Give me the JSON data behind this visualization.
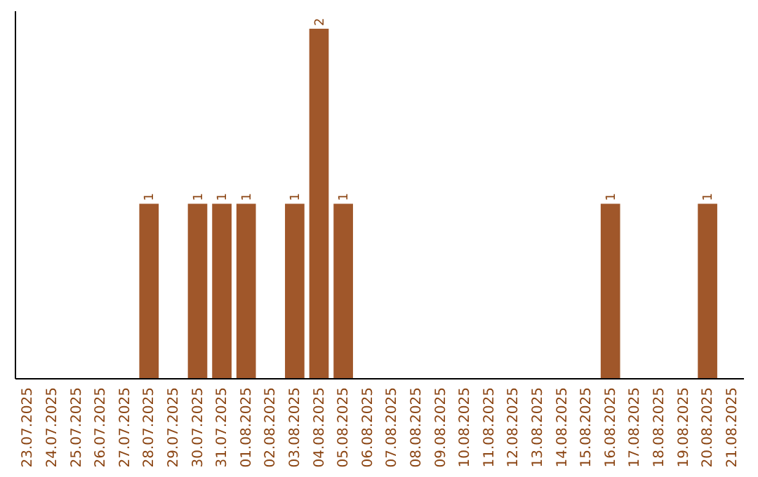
{
  "chart_data": {
    "type": "bar",
    "categories": [
      "23.07.2025",
      "24.07.2025",
      "25.07.2025",
      "26.07.2025",
      "27.07.2025",
      "28.07.2025",
      "29.07.2025",
      "30.07.2025",
      "31.07.2025",
      "01.08.2025",
      "02.08.2025",
      "03.08.2025",
      "04.08.2025",
      "05.08.2025",
      "06.08.2025",
      "07.08.2025",
      "08.08.2025",
      "09.08.2025",
      "10.08.2025",
      "11.08.2025",
      "12.08.2025",
      "13.08.2025",
      "14.08.2025",
      "15.08.2025",
      "16.08.2025",
      "17.08.2025",
      "18.08.2025",
      "19.08.2025",
      "20.08.2025",
      "21.08.2025"
    ],
    "values": [
      null,
      null,
      null,
      null,
      null,
      1,
      null,
      1,
      1,
      1,
      null,
      1,
      2,
      1,
      null,
      null,
      null,
      null,
      null,
      null,
      null,
      null,
      null,
      null,
      1,
      null,
      null,
      null,
      1,
      null
    ],
    "color": "#a0572a",
    "ylim": [
      0,
      2.1
    ],
    "data_labels": true,
    "tick_labels": "x"
  }
}
